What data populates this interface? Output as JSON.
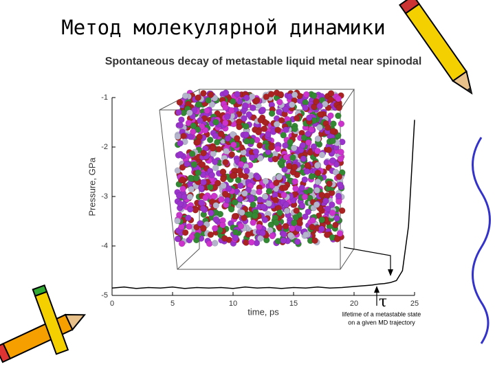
{
  "slide_title": "Метод молекулярной динамики",
  "chart_data": {
    "type": "line",
    "title": "Spontaneous decay of metastable liquid metal near spinodal",
    "x_label": "time, ps",
    "y_label": "Pressure, GPa",
    "annotations": [
      "τ",
      "lifetime of a metastable state",
      "on a given MD trajectory"
    ],
    "x": [
      0,
      1,
      2,
      3,
      4,
      5,
      6,
      7,
      8,
      9,
      10,
      11,
      12,
      13,
      14,
      15,
      16,
      17,
      18,
      19,
      20,
      21,
      21.5,
      22,
      22.5,
      23,
      23.5,
      24,
      24.5,
      25
    ],
    "series": [
      {
        "name": "pressure",
        "color": "#000000",
        "values": [
          -4.85,
          -4.83,
          -4.86,
          -4.84,
          -4.85,
          -4.83,
          -4.86,
          -4.84,
          -4.85,
          -4.84,
          -4.86,
          -4.83,
          -4.85,
          -4.84,
          -4.86,
          -4.84,
          -4.85,
          -4.83,
          -4.85,
          -4.84,
          -4.82,
          -4.8,
          -4.79,
          -4.77,
          -4.76,
          -4.74,
          -4.7,
          -4.5,
          -3.6,
          -1.45
        ]
      }
    ],
    "xlim": [
      0,
      25
    ],
    "xticks": [
      0,
      5,
      10,
      15,
      20,
      25
    ],
    "ylim": [
      -5,
      -1
    ],
    "yticks": [
      -1,
      -2,
      -3,
      -4,
      -5
    ]
  }
}
